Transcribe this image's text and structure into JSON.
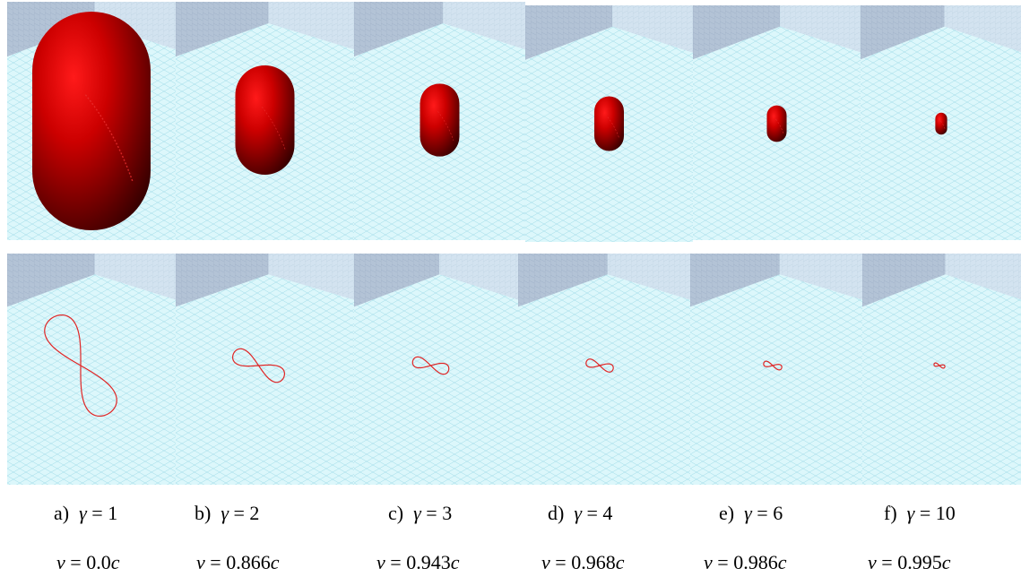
{
  "figure": {
    "colors": {
      "floor": "#dcf7fb",
      "grid": "#9fdbe8",
      "wall_left": "#b3c3d6",
      "wall_right": "#d3e3f0",
      "body_red": "#cc0000",
      "curve_red": "#e02525"
    },
    "panels": [
      {
        "letter": "a)",
        "symbol": "γ",
        "eq": "=",
        "gamma": "1",
        "v_sym": "v",
        "v_eq": "=",
        "v_value": "0.0",
        "v_unit": "c",
        "scale": 1.0
      },
      {
        "letter": "b)",
        "symbol": "γ",
        "eq": "=",
        "gamma": "2",
        "v_sym": "v",
        "v_eq": "=",
        "v_value": "0.866",
        "v_unit": "c",
        "scale": 0.5
      },
      {
        "letter": "c)",
        "symbol": "γ",
        "eq": "=",
        "gamma": "3",
        "v_sym": "v",
        "v_eq": "=",
        "v_value": "0.943",
        "v_unit": "c",
        "scale": 0.333
      },
      {
        "letter": "d)",
        "symbol": "γ",
        "eq": "=",
        "gamma": "4",
        "v_sym": "v",
        "v_eq": "=",
        "v_value": "0.968",
        "v_unit": "c",
        "scale": 0.25
      },
      {
        "letter": "e)",
        "symbol": "γ",
        "eq": "=",
        "gamma": "6",
        "v_sym": "v",
        "v_eq": "=",
        "v_value": "0.986",
        "v_unit": "c",
        "scale": 0.167
      },
      {
        "letter": "f)",
        "symbol": "γ",
        "eq": "=",
        "gamma": "10",
        "v_sym": "v",
        "v_eq": "=",
        "v_value": "0.995",
        "v_unit": "c",
        "scale": 0.1
      }
    ]
  }
}
